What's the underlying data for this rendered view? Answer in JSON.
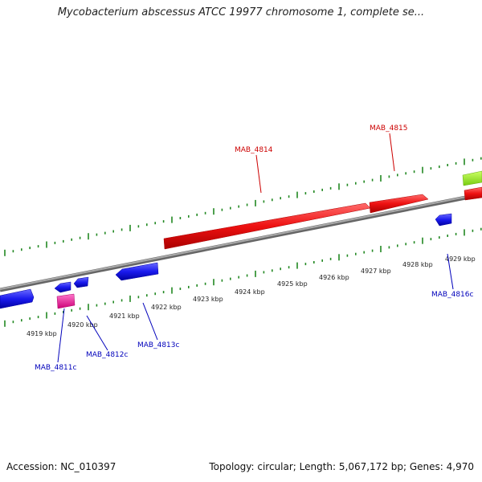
{
  "title": "Mycobacterium abscessus ATCC 19977 chromosome 1, complete se...",
  "footer": {
    "accession": "Accession: NC_010397",
    "summary": "Topology: circular; Length: 5,067,172 bp; Genes: 4,970"
  },
  "colors": {
    "forward_gene": "#ee1111",
    "reverse_gene": "#1a1aee",
    "rna_gene": "#ee1199",
    "other_gene": "#99ee22",
    "backbone": "#888888",
    "ticks": "#228822",
    "forward_label": "#cc0000",
    "reverse_label": "#0000bb"
  },
  "kbp_labels": [
    "4919 kbp",
    "4920 kbp",
    "4921 kbp",
    "4922 kbp",
    "4923 kbp",
    "4924 kbp",
    "4925 kbp",
    "4926 kbp",
    "4927 kbp",
    "4928 kbp",
    "4929 kbp"
  ],
  "gene_labels": {
    "forward": [
      "MAB_4814",
      "MAB_4815"
    ],
    "reverse": [
      "MAB_4811c",
      "MAB_4812c",
      "MAB_4813c",
      "MAB_4816c"
    ]
  }
}
